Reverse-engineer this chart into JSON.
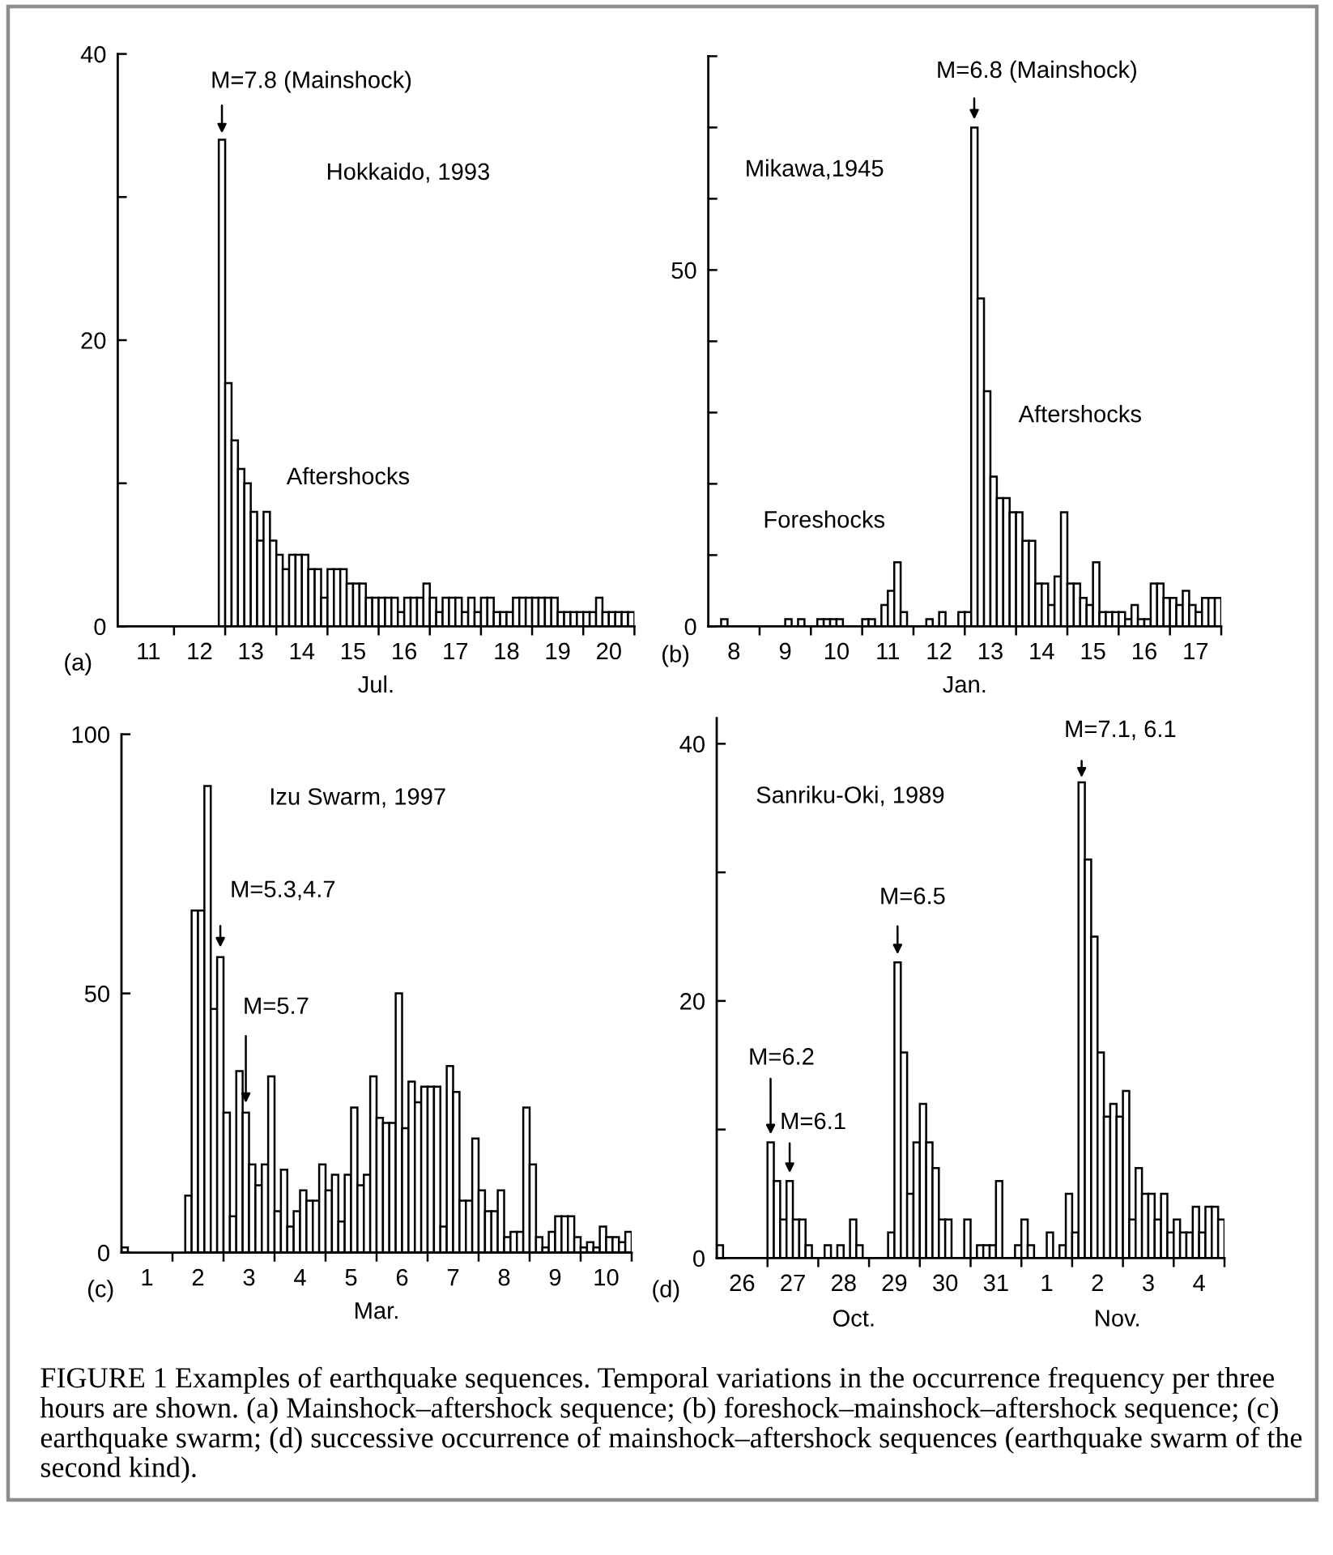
{
  "chart_data": [
    {
      "type": "histogram",
      "title": "Hokkaido, 1993",
      "xlabel": "Jul.",
      "color": "#ffffff",
      "bins": [
        "1993-07-12T21:00",
        "1993-07-13T00:00",
        "1993-07-13T03:00",
        "1993-07-13T06:00",
        "1993-07-13T09:00",
        "1993-07-13T12:00",
        "1993-07-13T15:00",
        "1993-07-13T18:00",
        "1993-07-13T21:00",
        "1993-07-14T00:00",
        "1993-07-14T03:00",
        "1993-07-14T06:00",
        "1993-07-14T09:00",
        "1993-07-14T12:00",
        "1993-07-14T15:00",
        "1993-07-14T18:00",
        "1993-07-14T21:00",
        "1993-07-15T00:00",
        "1993-07-15T03:00",
        "1993-07-15T06:00",
        "1993-07-15T09:00",
        "1993-07-15T12:00",
        "1993-07-15T15:00",
        "1993-07-15T18:00",
        "1993-07-15T21:00",
        "1993-07-16T00:00",
        "1993-07-16T03:00",
        "1993-07-16T06:00",
        "1993-07-16T09:00",
        "1993-07-16T12:00",
        "1993-07-16T15:00",
        "1993-07-16T18:00",
        "1993-07-16T21:00",
        "1993-07-17T00:00",
        "1993-07-17T03:00",
        "1993-07-17T06:00",
        "1993-07-17T09:00",
        "1993-07-17T12:00",
        "1993-07-17T15:00",
        "1993-07-17T18:00",
        "1993-07-17T21:00",
        "1993-07-18T00:00",
        "1993-07-18T03:00",
        "1993-07-18T06:00",
        "1993-07-18T09:00",
        "1993-07-18T12:00",
        "1993-07-18T15:00",
        "1993-07-18T18:00",
        "1993-07-18T21:00",
        "1993-07-19T00:00",
        "1993-07-19T03:00",
        "1993-07-19T06:00",
        "1993-07-19T09:00",
        "1993-07-19T12:00",
        "1993-07-19T15:00",
        "1993-07-19T18:00",
        "1993-07-19T21:00",
        "1993-07-20T00:00",
        "1993-07-20T03:00",
        "1993-07-20T06:00",
        "1993-07-20T09:00",
        "1993-07-20T12:00",
        "1993-07-20T15:00",
        "1993-07-20T18:00",
        "1993-07-20T21:00",
        "1993-07-21T00:00"
      ],
      "values": [
        34,
        17,
        13,
        11,
        10,
        8,
        6,
        8,
        6,
        5,
        4,
        5,
        5,
        5,
        4,
        4,
        2,
        4,
        4,
        4,
        3,
        3,
        3,
        2,
        2,
        2,
        2,
        2,
        1,
        2,
        2,
        2,
        3,
        2,
        1,
        2,
        2,
        2,
        1,
        2,
        1,
        2,
        2,
        1,
        1,
        1,
        2,
        2,
        2,
        2,
        2,
        2,
        2,
        1,
        1,
        1,
        1,
        1,
        1,
        2,
        1,
        1,
        1,
        1,
        1
      ],
      "xlim": [
        "1993-07-10T21:36",
        "1993-07-21T00:00"
      ],
      "ylim": [
        0,
        40
      ],
      "xticks": [
        {
          "value": "1993-07-11T12:00",
          "label": "11"
        },
        {
          "value": "1993-07-12T00:00",
          "label": null
        },
        {
          "value": "1993-07-12T12:00",
          "label": "12"
        },
        {
          "value": "1993-07-13T00:00",
          "label": null
        },
        {
          "value": "1993-07-13T12:00",
          "label": "13"
        },
        {
          "value": "1993-07-14T00:00",
          "label": null
        },
        {
          "value": "1993-07-14T12:00",
          "label": "14"
        },
        {
          "value": "1993-07-15T00:00",
          "label": null
        },
        {
          "value": "1993-07-15T12:00",
          "label": "15"
        },
        {
          "value": "1993-07-16T00:00",
          "label": null
        },
        {
          "value": "1993-07-16T12:00",
          "label": "16"
        },
        {
          "value": "1993-07-17T00:00",
          "label": null
        },
        {
          "value": "1993-07-17T12:00",
          "label": "17"
        },
        {
          "value": "1993-07-18T00:00",
          "label": null
        },
        {
          "value": "1993-07-18T12:00",
          "label": "18"
        },
        {
          "value": "1993-07-19T00:00",
          "label": null
        },
        {
          "value": "1993-07-19T12:00",
          "label": "19"
        },
        {
          "value": "1993-07-20T00:00",
          "label": null
        },
        {
          "value": "1993-07-20T12:00",
          "label": "20"
        },
        {
          "value": "1993-07-21T00:00",
          "label": null
        }
      ],
      "yticks": [
        0,
        {
          "value": 10,
          "label": null
        },
        20,
        {
          "value": 30,
          "label": null
        },
        40
      ],
      "annotations": [
        {
          "text": "M=7.8 (Mainshock)",
          "x": "1993-07-12T22:30",
          "y": 34
        },
        "Aftershocks",
        "(a)"
      ]
    },
    {
      "type": "histogram",
      "title": "Mikawa,1945",
      "xlabel": "Jan.",
      "color": "#ffffff",
      "bins": [
        "1945-01-08T00:00",
        "1945-01-08T03:00",
        "1945-01-08T06:00",
        "1945-01-08T09:00",
        "1945-01-08T12:00",
        "1945-01-08T15:00",
        "1945-01-08T18:00",
        "1945-01-08T21:00",
        "1945-01-09T00:00",
        "1945-01-09T03:00",
        "1945-01-09T06:00",
        "1945-01-09T09:00",
        "1945-01-09T12:00",
        "1945-01-09T15:00",
        "1945-01-09T18:00",
        "1945-01-09T21:00",
        "1945-01-10T00:00",
        "1945-01-10T03:00",
        "1945-01-10T06:00",
        "1945-01-10T09:00",
        "1945-01-10T12:00",
        "1945-01-10T15:00",
        "1945-01-10T18:00",
        "1945-01-10T21:00",
        "1945-01-11T00:00",
        "1945-01-11T03:00",
        "1945-01-11T06:00",
        "1945-01-11T09:00",
        "1945-01-11T12:00",
        "1945-01-11T15:00",
        "1945-01-11T18:00",
        "1945-01-11T21:00",
        "1945-01-12T00:00",
        "1945-01-12T03:00",
        "1945-01-12T06:00",
        "1945-01-12T09:00",
        "1945-01-12T12:00",
        "1945-01-12T15:00",
        "1945-01-12T18:00",
        "1945-01-12T21:00",
        "1945-01-13T00:00",
        "1945-01-13T03:00",
        "1945-01-13T06:00",
        "1945-01-13T09:00",
        "1945-01-13T12:00",
        "1945-01-13T15:00",
        "1945-01-13T18:00",
        "1945-01-13T21:00",
        "1945-01-14T00:00",
        "1945-01-14T03:00",
        "1945-01-14T06:00",
        "1945-01-14T09:00",
        "1945-01-14T12:00",
        "1945-01-14T15:00",
        "1945-01-14T18:00",
        "1945-01-14T21:00",
        "1945-01-15T00:00",
        "1945-01-15T03:00",
        "1945-01-15T06:00",
        "1945-01-15T09:00",
        "1945-01-15T12:00",
        "1945-01-15T15:00",
        "1945-01-15T18:00",
        "1945-01-15T21:00",
        "1945-01-16T00:00",
        "1945-01-16T03:00",
        "1945-01-16T06:00",
        "1945-01-16T09:00",
        "1945-01-16T12:00",
        "1945-01-16T15:00",
        "1945-01-16T18:00",
        "1945-01-16T21:00",
        "1945-01-17T00:00",
        "1945-01-17T03:00",
        "1945-01-17T06:00",
        "1945-01-17T09:00",
        "1945-01-17T12:00",
        "1945-01-17T15:00",
        "1945-01-17T18:00",
        "1945-01-17T21:00",
        "1945-01-18T00:00"
      ],
      "values": [
        0,
        0,
        1,
        0,
        0,
        0,
        0,
        0,
        0,
        0,
        0,
        0,
        1,
        0,
        1,
        0,
        0,
        1,
        1,
        1,
        1,
        0,
        0,
        0,
        1,
        1,
        0,
        3,
        5,
        9,
        2,
        0,
        0,
        0,
        1,
        0,
        2,
        0,
        0,
        2,
        2,
        70,
        46,
        33,
        21,
        18,
        18,
        16,
        16,
        12,
        12,
        6,
        6,
        3,
        7,
        16,
        6,
        6,
        4,
        3,
        9,
        2,
        2,
        2,
        2,
        1,
        3,
        1,
        1,
        6,
        6,
        4,
        4,
        3,
        5,
        3,
        2,
        4,
        4,
        4
      ],
      "xlim": [
        "1945-01-08T00:00",
        "1945-01-18T00:00"
      ],
      "ylim": [
        0,
        80
      ],
      "xticks": [
        {
          "value": "1945-01-08T12:00",
          "label": "8"
        },
        {
          "value": "1945-01-09T00:00",
          "label": null
        },
        {
          "value": "1945-01-09T12:00",
          "label": "9"
        },
        {
          "value": "1945-01-10T00:00",
          "label": null
        },
        {
          "value": "1945-01-10T12:00",
          "label": "10"
        },
        {
          "value": "1945-01-11T00:00",
          "label": null
        },
        {
          "value": "1945-01-11T12:00",
          "label": "11"
        },
        {
          "value": "1945-01-12T00:00",
          "label": null
        },
        {
          "value": "1945-01-12T12:00",
          "label": "12"
        },
        {
          "value": "1945-01-13T00:00",
          "label": null
        },
        {
          "value": "1945-01-13T12:00",
          "label": "13"
        },
        {
          "value": "1945-01-14T00:00",
          "label": null
        },
        {
          "value": "1945-01-14T12:00",
          "label": "14"
        },
        {
          "value": "1945-01-15T00:00",
          "label": null
        },
        {
          "value": "1945-01-15T12:00",
          "label": "15"
        },
        {
          "value": "1945-01-16T00:00",
          "label": null
        },
        {
          "value": "1945-01-16T12:00",
          "label": "16"
        },
        {
          "value": "1945-01-17T00:00",
          "label": null
        },
        {
          "value": "1945-01-17T12:00",
          "label": "17"
        },
        {
          "value": "1945-01-18T00:00",
          "label": null
        }
      ],
      "yticks": [
        0,
        {
          "value": 10,
          "label": null
        },
        {
          "value": 20,
          "label": null
        },
        {
          "value": 30,
          "label": null
        },
        {
          "value": 40,
          "label": null
        },
        50,
        {
          "value": 60,
          "label": null
        },
        {
          "value": 70,
          "label": null
        },
        {
          "value": 80,
          "label": null
        }
      ],
      "annotations": [
        {
          "text": "M=6.8 (Mainshock)",
          "x": "1945-01-13T04:30",
          "y": 70
        },
        "Foreshocks",
        "Aftershocks",
        "(b)"
      ]
    },
    {
      "type": "histogram",
      "title": "Izu Swarm, 1997",
      "xlabel": "Mar.",
      "color": "#ffffff",
      "bins": [
        "1997-03-01T00:00",
        "1997-03-01T03:00",
        "1997-03-01T06:00",
        "1997-03-01T09:00",
        "1997-03-01T12:00",
        "1997-03-01T15:00",
        "1997-03-01T18:00",
        "1997-03-01T21:00",
        "1997-03-02T00:00",
        "1997-03-02T03:00",
        "1997-03-02T06:00",
        "1997-03-02T09:00",
        "1997-03-02T12:00",
        "1997-03-02T15:00",
        "1997-03-02T18:00",
        "1997-03-02T21:00",
        "1997-03-03T00:00",
        "1997-03-03T03:00",
        "1997-03-03T06:00",
        "1997-03-03T09:00",
        "1997-03-03T12:00",
        "1997-03-03T15:00",
        "1997-03-03T18:00",
        "1997-03-03T21:00",
        "1997-03-04T00:00",
        "1997-03-04T03:00",
        "1997-03-04T06:00",
        "1997-03-04T09:00",
        "1997-03-04T12:00",
        "1997-03-04T15:00",
        "1997-03-04T18:00",
        "1997-03-04T21:00",
        "1997-03-05T00:00",
        "1997-03-05T03:00",
        "1997-03-05T06:00",
        "1997-03-05T09:00",
        "1997-03-05T12:00",
        "1997-03-05T15:00",
        "1997-03-05T18:00",
        "1997-03-05T21:00",
        "1997-03-06T00:00",
        "1997-03-06T03:00",
        "1997-03-06T06:00",
        "1997-03-06T09:00",
        "1997-03-06T12:00",
        "1997-03-06T15:00",
        "1997-03-06T18:00",
        "1997-03-06T21:00",
        "1997-03-07T00:00",
        "1997-03-07T03:00",
        "1997-03-07T06:00",
        "1997-03-07T09:00",
        "1997-03-07T12:00",
        "1997-03-07T15:00",
        "1997-03-07T18:00",
        "1997-03-07T21:00",
        "1997-03-08T00:00",
        "1997-03-08T03:00",
        "1997-03-08T06:00",
        "1997-03-08T09:00",
        "1997-03-08T12:00",
        "1997-03-08T15:00",
        "1997-03-08T18:00",
        "1997-03-08T21:00",
        "1997-03-09T00:00",
        "1997-03-09T03:00",
        "1997-03-09T06:00",
        "1997-03-09T09:00",
        "1997-03-09T12:00",
        "1997-03-09T15:00",
        "1997-03-09T18:00",
        "1997-03-09T21:00",
        "1997-03-10T00:00",
        "1997-03-10T03:00",
        "1997-03-10T06:00",
        "1997-03-10T09:00",
        "1997-03-10T12:00",
        "1997-03-10T15:00",
        "1997-03-10T18:00",
        "1997-03-10T21:00",
        "1997-03-11T00:00"
      ],
      "values": [
        1,
        0,
        0,
        0,
        0,
        0,
        0,
        0,
        0,
        0,
        11,
        66,
        66,
        90,
        47,
        57,
        27,
        7,
        35,
        27,
        17,
        13,
        17,
        34,
        8,
        16,
        5,
        8,
        12,
        10,
        10,
        17,
        12,
        15,
        6,
        15,
        28,
        13,
        15,
        34,
        26,
        25,
        25,
        50,
        24,
        33,
        29,
        32,
        32,
        32,
        5,
        36,
        31,
        10,
        10,
        22,
        12,
        8,
        8,
        12,
        3,
        4,
        4,
        28,
        17,
        3,
        1,
        4,
        7,
        7,
        7,
        3,
        1,
        2,
        1,
        5,
        3,
        3,
        2,
        4
      ],
      "xlim": [
        "1997-03-01T00:00",
        "1997-03-11T00:00"
      ],
      "ylim": [
        0,
        100
      ],
      "xticks": [
        {
          "value": "1997-03-01T12:00",
          "label": "1"
        },
        {
          "value": "1997-03-02T00:00",
          "label": null
        },
        {
          "value": "1997-03-02T12:00",
          "label": "2"
        },
        {
          "value": "1997-03-03T00:00",
          "label": null
        },
        {
          "value": "1997-03-03T12:00",
          "label": "3"
        },
        {
          "value": "1997-03-04T00:00",
          "label": null
        },
        {
          "value": "1997-03-04T12:00",
          "label": "4"
        },
        {
          "value": "1997-03-05T00:00",
          "label": null
        },
        {
          "value": "1997-03-05T12:00",
          "label": "5"
        },
        {
          "value": "1997-03-06T00:00",
          "label": null
        },
        {
          "value": "1997-03-06T12:00",
          "label": "6"
        },
        {
          "value": "1997-03-07T00:00",
          "label": null
        },
        {
          "value": "1997-03-07T12:00",
          "label": "7"
        },
        {
          "value": "1997-03-08T00:00",
          "label": null
        },
        {
          "value": "1997-03-08T12:00",
          "label": "8"
        },
        {
          "value": "1997-03-09T00:00",
          "label": null
        },
        {
          "value": "1997-03-09T12:00",
          "label": "9"
        },
        {
          "value": "1997-03-10T00:00",
          "label": null
        },
        {
          "value": "1997-03-10T12:00",
          "label": "10"
        },
        {
          "value": "1997-03-11T00:00",
          "label": null
        }
      ],
      "yticks": [
        0,
        50,
        100
      ],
      "annotations": [
        {
          "text": "M=5.3,4.7",
          "x": "1997-03-02T22:30",
          "y": 57
        },
        {
          "text": "M=5.7",
          "x": "1997-03-03T10:30",
          "y": 27
        },
        "(c)"
      ]
    },
    {
      "type": "histogram",
      "title": "Sanriku-Oki, 1989",
      "color": "#ffffff",
      "bins": [
        "1989-10-26T00:00",
        "1989-10-26T03:00",
        "1989-10-26T06:00",
        "1989-10-26T09:00",
        "1989-10-26T12:00",
        "1989-10-26T15:00",
        "1989-10-26T18:00",
        "1989-10-26T21:00",
        "1989-10-27T00:00",
        "1989-10-27T03:00",
        "1989-10-27T06:00",
        "1989-10-27T09:00",
        "1989-10-27T12:00",
        "1989-10-27T15:00",
        "1989-10-27T18:00",
        "1989-10-27T21:00",
        "1989-10-28T00:00",
        "1989-10-28T03:00",
        "1989-10-28T06:00",
        "1989-10-28T09:00",
        "1989-10-28T12:00",
        "1989-10-28T15:00",
        "1989-10-28T18:00",
        "1989-10-28T21:00",
        "1989-10-29T00:00",
        "1989-10-29T03:00",
        "1989-10-29T06:00",
        "1989-10-29T09:00",
        "1989-10-29T12:00",
        "1989-10-29T15:00",
        "1989-10-29T18:00",
        "1989-10-29T21:00",
        "1989-10-30T00:00",
        "1989-10-30T03:00",
        "1989-10-30T06:00",
        "1989-10-30T09:00",
        "1989-10-30T12:00",
        "1989-10-30T15:00",
        "1989-10-30T18:00",
        "1989-10-30T21:00",
        "1989-10-31T00:00",
        "1989-10-31T03:00",
        "1989-10-31T06:00",
        "1989-10-31T09:00",
        "1989-10-31T12:00",
        "1989-10-31T15:00",
        "1989-10-31T18:00",
        "1989-10-31T21:00",
        "1989-11-01T00:00",
        "1989-11-01T03:00",
        "1989-11-01T06:00",
        "1989-11-01T09:00",
        "1989-11-01T12:00",
        "1989-11-01T15:00",
        "1989-11-01T18:00",
        "1989-11-01T21:00",
        "1989-11-02T00:00",
        "1989-11-02T03:00",
        "1989-11-02T06:00",
        "1989-11-02T09:00",
        "1989-11-02T12:00",
        "1989-11-02T15:00",
        "1989-11-02T18:00",
        "1989-11-02T21:00",
        "1989-11-03T00:00",
        "1989-11-03T03:00",
        "1989-11-03T06:00",
        "1989-11-03T09:00",
        "1989-11-03T12:00",
        "1989-11-03T15:00",
        "1989-11-03T18:00",
        "1989-11-03T21:00",
        "1989-11-04T00:00",
        "1989-11-04T03:00",
        "1989-11-04T06:00",
        "1989-11-04T09:00",
        "1989-11-04T12:00",
        "1989-11-04T15:00",
        "1989-11-04T18:00",
        "1989-11-04T21:00",
        "1989-11-05T00:00"
      ],
      "values": [
        1,
        0,
        0,
        0,
        0,
        0,
        0,
        0,
        9,
        6,
        3,
        6,
        3,
        3,
        1,
        0,
        0,
        1,
        0,
        1,
        0,
        3,
        1,
        0,
        0,
        0,
        0,
        2,
        23,
        16,
        5,
        9,
        12,
        9,
        7,
        3,
        3,
        0,
        0,
        3,
        0,
        1,
        1,
        1,
        6,
        0,
        0,
        1,
        3,
        1,
        0,
        0,
        2,
        0,
        1,
        5,
        2,
        37,
        31,
        25,
        16,
        11,
        12,
        11,
        13,
        3,
        7,
        5,
        5,
        3,
        5,
        2,
        3,
        2,
        2,
        4,
        2,
        4,
        4,
        3
      ],
      "xlim": [
        "1989-10-26T00:00",
        "1989-11-05T00:00"
      ],
      "ylim": [
        0,
        42
      ],
      "xticks": [
        {
          "value": "1989-10-26T12:00",
          "label": "26"
        },
        {
          "value": "1989-10-27T00:00",
          "label": null
        },
        {
          "value": "1989-10-27T12:00",
          "label": "27"
        },
        {
          "value": "1989-10-28T00:00",
          "label": null
        },
        {
          "value": "1989-10-28T12:00",
          "label": "28"
        },
        {
          "value": "1989-10-29T00:00",
          "label": null
        },
        {
          "value": "1989-10-29T12:00",
          "label": "29"
        },
        {
          "value": "1989-10-30T00:00",
          "label": null
        },
        {
          "value": "1989-10-30T12:00",
          "label": "30"
        },
        {
          "value": "1989-10-31T00:00",
          "label": null
        },
        {
          "value": "1989-10-31T12:00",
          "label": "31"
        },
        {
          "value": "1989-11-01T00:00",
          "label": null
        },
        {
          "value": "1989-11-01T12:00",
          "label": "1"
        },
        {
          "value": "1989-11-02T00:00",
          "label": null
        },
        {
          "value": "1989-11-02T12:00",
          "label": "2"
        },
        {
          "value": "1989-11-03T00:00",
          "label": null
        },
        {
          "value": "1989-11-03T12:00",
          "label": "3"
        },
        {
          "value": "1989-11-04T00:00",
          "label": null
        },
        {
          "value": "1989-11-04T12:00",
          "label": "4"
        },
        {
          "value": "1989-11-05T00:00",
          "label": null
        }
      ],
      "yticks": [
        0,
        {
          "value": 10,
          "label": null
        },
        20,
        {
          "value": 30,
          "label": null
        },
        40
      ],
      "annotations": [
        {
          "text": "M=6.2",
          "x": "1989-10-27T01:30",
          "y": 9
        },
        {
          "text": "M=6.1",
          "x": "1989-10-27T10:30",
          "y": 6
        },
        {
          "text": "M=6.5",
          "x": "1989-10-29T13:30",
          "y": 23
        },
        {
          "text": "M=7.1, 6.1",
          "x": "1989-11-02T04:30",
          "y": 37
        },
        "Oct.",
        "Nov.",
        "(d)",
        "FIGURE 1 Examples of earthquake sequences. Temporal variations in the occurrence frequency per three hours are shown. (a) Mainshock–aftershock sequence; (b) foreshock–mainshock–aftershock sequence; (c) earthquake swarm; (d) successive occurrence of mainshock–aftershock sequences (earthquake swarm of the second kind)."
      ]
    }
  ]
}
